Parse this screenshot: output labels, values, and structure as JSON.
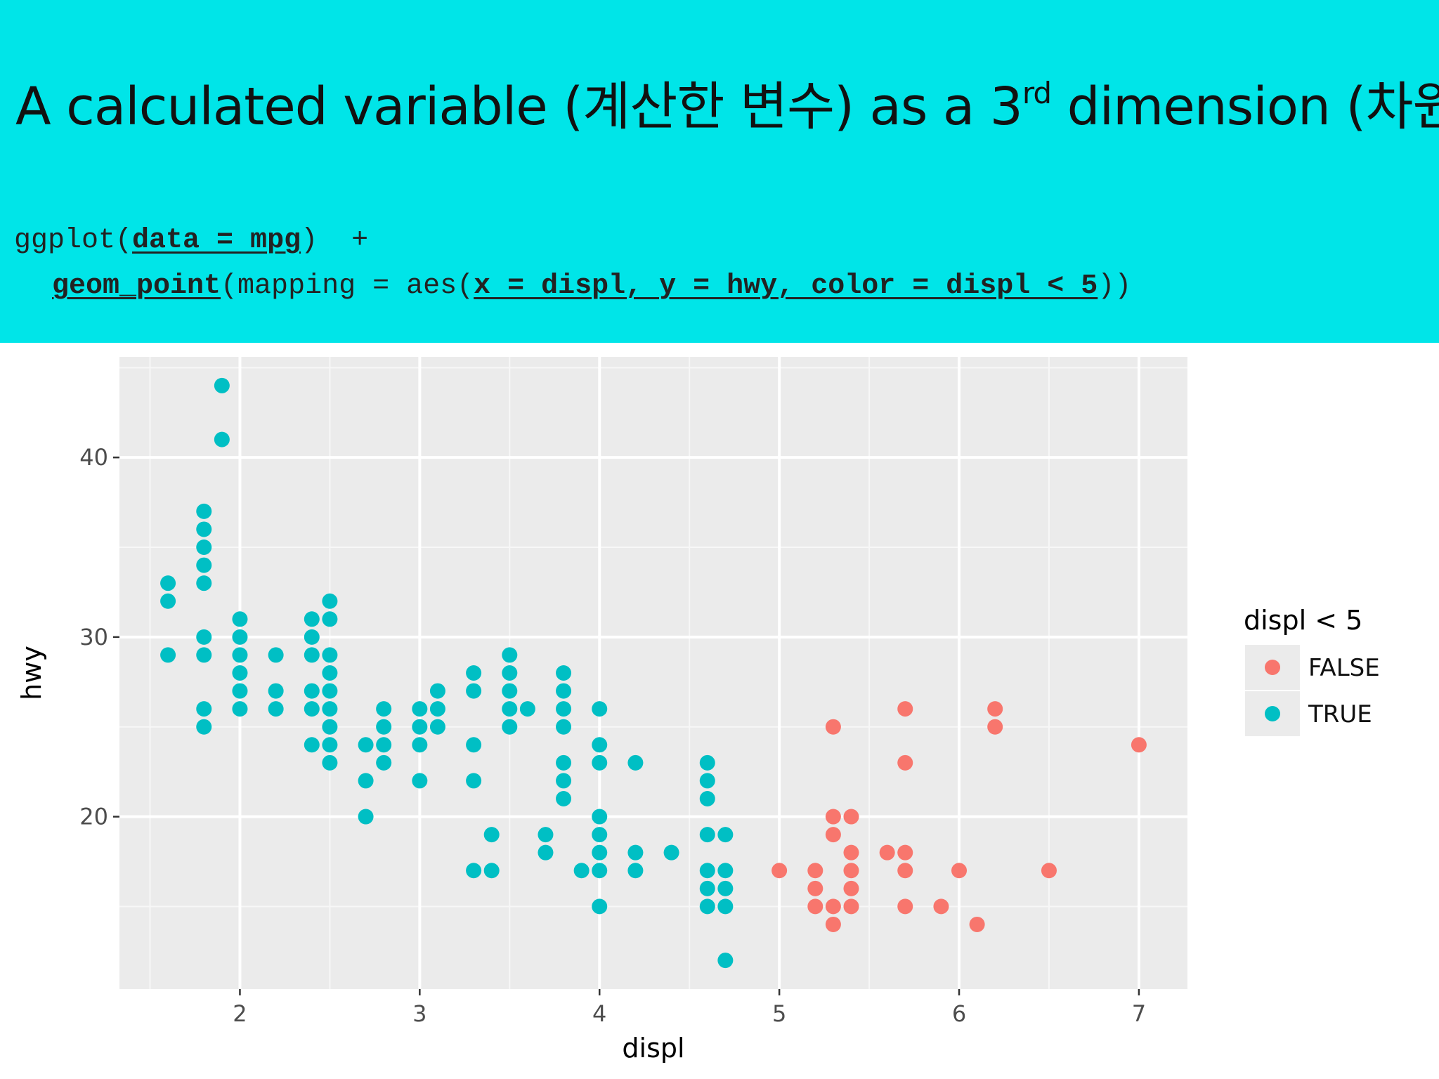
{
  "slide": {
    "title_main": "A calculated variable (계산한 변수) as a 3",
    "title_sup": "rd",
    "title_tail": " dimension (차원)"
  },
  "code": {
    "l1_fn": "ggplot(",
    "l1_arg": "data = mpg",
    "l1_end": ")  +",
    "l2_fn": "geom_point",
    "l2_mid": "(mapping = aes(",
    "l2_arg": "x = displ, y = hwy, color = displ < 5",
    "l2_end": "))"
  },
  "colors": {
    "header_bg": "#00e5e8",
    "false_color": "#f8766d",
    "true_color": "#00bfc4",
    "panel_bg": "#ebebeb"
  },
  "chart_data": {
    "type": "scatter",
    "xlabel": "displ",
    "ylabel": "hwy",
    "xlim": [
      1.33,
      7.27
    ],
    "ylim": [
      10.4,
      45.6
    ],
    "xticks": [
      2,
      3,
      4,
      5,
      6,
      7
    ],
    "yticks": [
      20,
      30,
      40
    ],
    "grid": true,
    "legend": {
      "title": "displ < 5",
      "position": "right"
    },
    "series": [
      {
        "name": "FALSE",
        "color": "#f8766d",
        "points": [
          [
            5.0,
            17
          ],
          [
            5.2,
            17
          ],
          [
            5.2,
            16
          ],
          [
            5.2,
            15
          ],
          [
            5.3,
            25
          ],
          [
            5.3,
            20
          ],
          [
            5.3,
            19
          ],
          [
            5.3,
            15
          ],
          [
            5.3,
            14
          ],
          [
            5.4,
            20
          ],
          [
            5.4,
            18
          ],
          [
            5.4,
            17
          ],
          [
            5.4,
            16
          ],
          [
            5.4,
            15
          ],
          [
            5.6,
            18
          ],
          [
            5.7,
            26
          ],
          [
            5.7,
            23
          ],
          [
            5.7,
            18
          ],
          [
            5.7,
            17
          ],
          [
            5.7,
            15
          ],
          [
            5.9,
            15
          ],
          [
            6.0,
            17
          ],
          [
            6.1,
            14
          ],
          [
            6.2,
            26
          ],
          [
            6.2,
            25
          ],
          [
            6.5,
            17
          ],
          [
            7.0,
            24
          ]
        ]
      },
      {
        "name": "TRUE",
        "color": "#00bfc4",
        "points": [
          [
            1.6,
            33
          ],
          [
            1.6,
            32
          ],
          [
            1.6,
            29
          ],
          [
            1.8,
            37
          ],
          [
            1.8,
            36
          ],
          [
            1.8,
            35
          ],
          [
            1.8,
            34
          ],
          [
            1.8,
            33
          ],
          [
            1.8,
            30
          ],
          [
            1.8,
            29
          ],
          [
            1.8,
            26
          ],
          [
            1.8,
            25
          ],
          [
            1.9,
            44
          ],
          [
            1.9,
            41
          ],
          [
            2.0,
            31
          ],
          [
            2.0,
            30
          ],
          [
            2.0,
            29
          ],
          [
            2.0,
            28
          ],
          [
            2.0,
            27
          ],
          [
            2.0,
            26
          ],
          [
            2.2,
            29
          ],
          [
            2.2,
            27
          ],
          [
            2.2,
            26
          ],
          [
            2.4,
            31
          ],
          [
            2.4,
            30
          ],
          [
            2.4,
            29
          ],
          [
            2.4,
            27
          ],
          [
            2.4,
            26
          ],
          [
            2.4,
            24
          ],
          [
            2.5,
            32
          ],
          [
            2.5,
            31
          ],
          [
            2.5,
            29
          ],
          [
            2.5,
            28
          ],
          [
            2.5,
            27
          ],
          [
            2.5,
            26
          ],
          [
            2.5,
            25
          ],
          [
            2.5,
            24
          ],
          [
            2.5,
            23
          ],
          [
            2.7,
            24
          ],
          [
            2.7,
            22
          ],
          [
            2.7,
            20
          ],
          [
            2.8,
            26
          ],
          [
            2.8,
            25
          ],
          [
            2.8,
            24
          ],
          [
            2.8,
            23
          ],
          [
            3.0,
            26
          ],
          [
            3.0,
            25
          ],
          [
            3.0,
            24
          ],
          [
            3.0,
            22
          ],
          [
            3.1,
            27
          ],
          [
            3.1,
            26
          ],
          [
            3.1,
            25
          ],
          [
            3.3,
            28
          ],
          [
            3.3,
            27
          ],
          [
            3.3,
            24
          ],
          [
            3.3,
            22
          ],
          [
            3.3,
            17
          ],
          [
            3.4,
            19
          ],
          [
            3.4,
            17
          ],
          [
            3.5,
            29
          ],
          [
            3.5,
            28
          ],
          [
            3.5,
            27
          ],
          [
            3.5,
            26
          ],
          [
            3.5,
            25
          ],
          [
            3.6,
            26
          ],
          [
            3.7,
            19
          ],
          [
            3.7,
            18
          ],
          [
            3.8,
            28
          ],
          [
            3.8,
            27
          ],
          [
            3.8,
            26
          ],
          [
            3.8,
            25
          ],
          [
            3.8,
            23
          ],
          [
            3.8,
            22
          ],
          [
            3.8,
            21
          ],
          [
            3.9,
            17
          ],
          [
            4.0,
            26
          ],
          [
            4.0,
            24
          ],
          [
            4.0,
            23
          ],
          [
            4.0,
            20
          ],
          [
            4.0,
            19
          ],
          [
            4.0,
            18
          ],
          [
            4.0,
            17
          ],
          [
            4.0,
            15
          ],
          [
            4.2,
            23
          ],
          [
            4.2,
            18
          ],
          [
            4.2,
            17
          ],
          [
            4.4,
            18
          ],
          [
            4.6,
            23
          ],
          [
            4.6,
            22
          ],
          [
            4.6,
            21
          ],
          [
            4.6,
            19
          ],
          [
            4.6,
            17
          ],
          [
            4.6,
            16
          ],
          [
            4.6,
            15
          ],
          [
            4.7,
            19
          ],
          [
            4.7,
            17
          ],
          [
            4.7,
            16
          ],
          [
            4.7,
            15
          ],
          [
            4.7,
            12
          ]
        ]
      }
    ]
  }
}
